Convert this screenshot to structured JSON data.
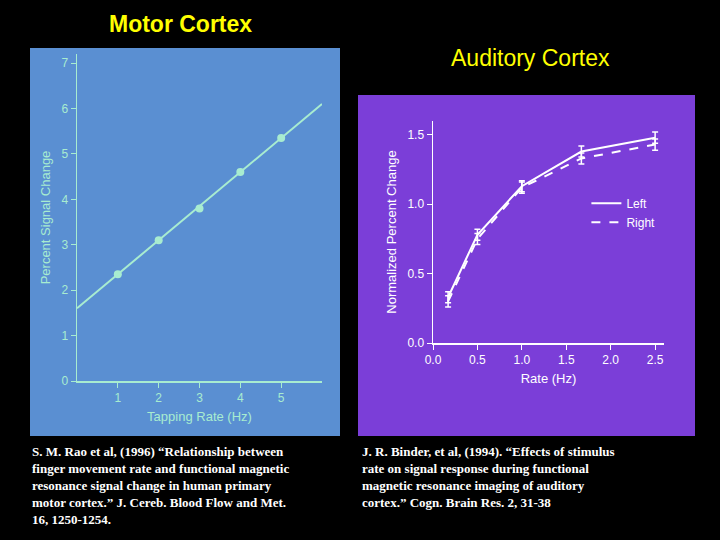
{
  "chart_data": [
    {
      "type": "line",
      "title": "Motor Cortex",
      "x_label": "Tapping Rate (Hz)",
      "y_label": "Percent Signal Change",
      "series": [
        {
          "type": "scatter",
          "marker": "circle",
          "color": "#a8ecd0",
          "x": [
            1,
            2,
            3,
            4,
            5
          ],
          "values": [
            2.35,
            3.1,
            3.8,
            4.6,
            5.35
          ]
        },
        {
          "type": "line",
          "line_style": "solid",
          "color": "#a8ecd0",
          "x": [
            0,
            6
          ],
          "values": [
            1.6,
            6.1
          ]
        }
      ],
      "xlim": [
        0,
        6
      ],
      "xticks": [
        1,
        2,
        3,
        4,
        5
      ],
      "ylim": [
        0,
        7.2
      ],
      "yticks": [
        0,
        1,
        2,
        3,
        4,
        5,
        6,
        7
      ],
      "grid": false,
      "source": [
        "S. M. Rao et al, (1996) “Relationship between",
        "finger movement rate and functional magnetic",
        "resonance signal change in human primary",
        "motor cortex.” J. Cereb. Blood Flow and Met.",
        "16, 1250-1254."
      ]
    },
    {
      "type": "line",
      "title": "Auditory Cortex",
      "x_label": "Rate (Hz)",
      "y_label": "Normalized Percent Change",
      "series": [
        {
          "name": "Left",
          "line_style": "solid",
          "color": "#ffffff",
          "x": [
            0.17,
            0.5,
            1.0,
            1.67,
            2.5
          ],
          "values": [
            0.33,
            0.78,
            1.13,
            1.38,
            1.48
          ],
          "error": [
            0.04,
            0.04,
            0.04,
            0.04,
            0.04
          ]
        },
        {
          "name": "Right",
          "line_style": "dash",
          "color": "#ffffff",
          "x": [
            0.17,
            0.5,
            1.0,
            1.67,
            2.5
          ],
          "values": [
            0.3,
            0.75,
            1.12,
            1.33,
            1.43
          ],
          "error": [
            0.04,
            0.04,
            0.04,
            0.04,
            0.04
          ]
        }
      ],
      "xlim": [
        0,
        2.6
      ],
      "xticks": [
        {
          "value": 0,
          "label": "0.0"
        },
        {
          "value": 0.5,
          "label": "0.5"
        },
        {
          "value": 1,
          "label": "1.0"
        },
        {
          "value": 1.5,
          "label": "1.5"
        },
        {
          "value": 2,
          "label": "2.0"
        },
        {
          "value": 2.5,
          "label": "2.5"
        }
      ],
      "ylim": [
        0,
        1.6
      ],
      "yticks": [
        {
          "value": 0,
          "label": "0.0"
        },
        {
          "value": 0.5,
          "label": "0.5"
        },
        {
          "value": 1,
          "label": "1.0"
        },
        {
          "value": 1.5,
          "label": "1.5"
        }
      ],
      "grid": false,
      "legend": "right",
      "source": [
        "J. R. Binder, et al, (1994). “Effects of stimulus",
        "rate on signal response during functional",
        "magnetic resonance imaging of auditory",
        "cortex.” Cogn. Brain Res. 2, 31-38"
      ]
    }
  ]
}
